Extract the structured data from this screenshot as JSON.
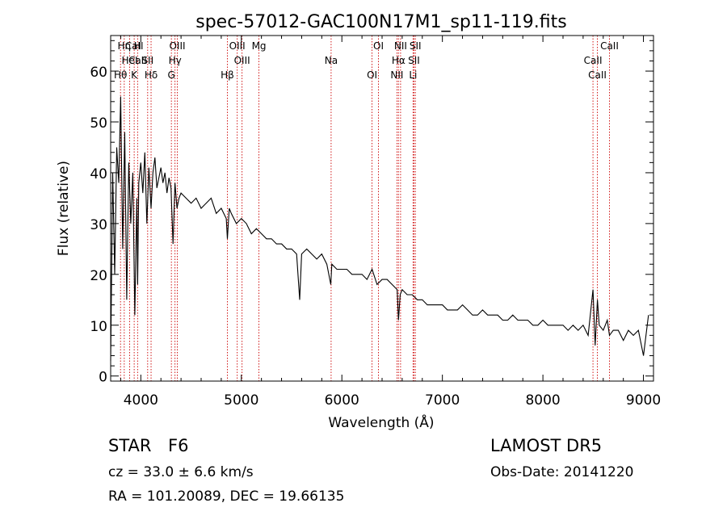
{
  "chart_data": {
    "type": "line",
    "title": "spec-57012-GAC100N17M1_sp11-119.fits",
    "xlabel": "Wavelength (Å)",
    "ylabel": "Flux (relative)",
    "xlim": [
      3700,
      9100
    ],
    "ylim": [
      -1,
      67
    ],
    "xticks": [
      4000,
      5000,
      6000,
      7000,
      8000,
      9000
    ],
    "yticks": [
      0,
      10,
      20,
      30,
      40,
      50,
      60
    ],
    "grid": false,
    "series": [
      {
        "x": [
          3700,
          3720,
          3740,
          3760,
          3780,
          3800,
          3820,
          3840,
          3860,
          3880,
          3900,
          3920,
          3940,
          3960,
          3968,
          3980,
          4000,
          4020,
          4040,
          4060,
          4080,
          4102,
          4120,
          4140,
          4160,
          4180,
          4200,
          4220,
          4240,
          4260,
          4280,
          4300,
          4320,
          4340,
          4360,
          4380,
          4400,
          4450,
          4500,
          4550,
          4600,
          4650,
          4700,
          4750,
          4800,
          4850,
          4861,
          4880,
          4900,
          4950,
          5000,
          5050,
          5100,
          5150,
          5200,
          5250,
          5300,
          5350,
          5400,
          5450,
          5500,
          5550,
          5580,
          5600,
          5650,
          5700,
          5750,
          5800,
          5850,
          5890,
          5900,
          5950,
          6000,
          6050,
          6100,
          6150,
          6200,
          6250,
          6300,
          6350,
          6400,
          6450,
          6500,
          6550,
          6563,
          6580,
          6600,
          6650,
          6700,
          6750,
          6800,
          6850,
          6900,
          6950,
          7000,
          7050,
          7100,
          7150,
          7200,
          7250,
          7300,
          7350,
          7400,
          7450,
          7500,
          7550,
          7600,
          7650,
          7700,
          7750,
          7800,
          7850,
          7900,
          7950,
          8000,
          8050,
          8100,
          8150,
          8200,
          8250,
          8300,
          8350,
          8400,
          8450,
          8498,
          8520,
          8542,
          8560,
          8600,
          8640,
          8662,
          8700,
          8750,
          8800,
          8850,
          8900,
          8950,
          9000,
          9050
        ],
        "y": [
          3,
          40,
          20,
          45,
          38,
          55,
          25,
          48,
          15,
          42,
          30,
          40,
          12,
          35,
          18,
          38,
          42,
          36,
          44,
          30,
          41,
          33,
          40,
          43,
          37,
          39,
          41,
          38,
          40,
          36,
          39,
          37,
          26,
          38,
          33,
          35,
          36,
          35,
          34,
          35,
          33,
          34,
          35,
          32,
          33,
          31,
          27,
          33,
          32,
          30,
          31,
          30,
          28,
          29,
          28,
          27,
          27,
          26,
          26,
          25,
          25,
          24,
          15,
          24,
          25,
          24,
          23,
          24,
          22,
          18,
          22,
          21,
          21,
          21,
          20,
          20,
          20,
          19,
          21,
          18,
          19,
          19,
          18,
          17,
          11,
          16,
          17,
          16,
          16,
          15,
          15,
          14,
          14,
          14,
          14,
          13,
          13,
          13,
          14,
          13,
          12,
          12,
          13,
          12,
          12,
          12,
          11,
          11,
          12,
          11,
          11,
          11,
          10,
          10,
          11,
          10,
          10,
          10,
          10,
          9,
          10,
          9,
          10,
          8,
          17,
          6,
          15,
          10,
          9,
          11,
          8,
          9,
          9,
          7,
          9,
          8,
          9,
          4,
          12
        ]
      }
    ],
    "annotations": [
      {
        "text": "CaII",
        "wavelength": 3934
      },
      {
        "text": "CaII",
        "wavelength": 3968
      },
      {
        "text": "Hθ",
        "wavelength": 3798
      },
      {
        "text": "Hη",
        "wavelength": 3835
      },
      {
        "text": "HeI",
        "wavelength": 3889
      },
      {
        "text": "K",
        "wavelength": 3934
      },
      {
        "text": "H",
        "wavelength": 3968
      },
      {
        "text": "SII",
        "wavelength": 4068
      },
      {
        "text": "Hδ",
        "wavelength": 4102
      },
      {
        "text": "OIII",
        "wavelength": 4363
      },
      {
        "text": "Hγ",
        "wavelength": 4340
      },
      {
        "text": "G",
        "wavelength": 4304
      },
      {
        "text": "OIII",
        "wavelength": 4959
      },
      {
        "text": "OIII",
        "wavelength": 5007
      },
      {
        "text": "Hβ",
        "wavelength": 4861
      },
      {
        "text": "Mg",
        "wavelength": 5175
      },
      {
        "text": "Na",
        "wavelength": 5893
      },
      {
        "text": "OI",
        "wavelength": 6300
      },
      {
        "text": "OI",
        "wavelength": 6364
      },
      {
        "text": "Hα",
        "wavelength": 6563
      },
      {
        "text": "NII",
        "wavelength": 6548
      },
      {
        "text": "NII",
        "wavelength": 6584
      },
      {
        "text": "SII",
        "wavelength": 6717
      },
      {
        "text": "Li",
        "wavelength": 6708
      },
      {
        "text": "SII",
        "wavelength": 6731
      },
      {
        "text": "CaII",
        "wavelength": 8498
      },
      {
        "text": "CaII",
        "wavelength": 8542
      },
      {
        "text": "CaII",
        "wavelength": 8662
      }
    ]
  },
  "info": {
    "class_label": "STAR",
    "subclass": "F6",
    "survey": "LAMOST DR5",
    "redshift_text": "cz = 33.0 ± 6.6 km/s",
    "obs_date": "Obs-Date: 20141220",
    "coords": "RA = 101.20089, DEC =  19.66135"
  }
}
